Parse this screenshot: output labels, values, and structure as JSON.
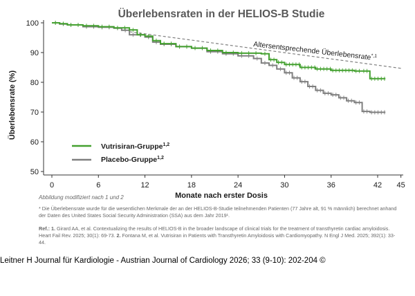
{
  "chart_data": {
    "type": "line",
    "title": "Überlebensraten in der HELIOS-B Studie",
    "xlabel": "Monate nach erster Dosis",
    "ylabel": "Überlebensrate (%)",
    "xlim": [
      0,
      45
    ],
    "ylim": [
      50,
      100
    ],
    "xticks": [
      0,
      6,
      12,
      18,
      24,
      30,
      36,
      42,
      45
    ],
    "yticks": [
      50,
      60,
      70,
      80,
      90,
      100
    ],
    "grid": false,
    "legend_position": "bottom-left",
    "series": [
      {
        "name": "Vutrisiran-Gruppe",
        "name_sup": "1,2",
        "color": "#43a02f",
        "style": "step-with-censor-ticks",
        "x": [
          0,
          1,
          2,
          4,
          6,
          8,
          10,
          11,
          12,
          13,
          14,
          16,
          18,
          20,
          22,
          24,
          27,
          28,
          29,
          30,
          32,
          34,
          36,
          39,
          40,
          41,
          43
        ],
        "y": [
          100,
          99.7,
          99.3,
          99,
          98.7,
          98.3,
          97.6,
          96,
          95.5,
          94,
          93,
          92,
          91.5,
          90.7,
          90,
          89.8,
          89.6,
          87.6,
          86.7,
          86,
          85,
          84.5,
          84,
          83.8,
          83.8,
          81.2,
          81.2
        ]
      },
      {
        "name": "Placebo-Gruppe",
        "name_sup": "1,2",
        "color": "#7f7f7f",
        "style": "step-with-censor-ticks",
        "x": [
          0,
          1,
          2,
          4,
          6,
          8,
          9,
          10,
          12,
          13,
          14,
          16,
          18,
          20,
          22,
          24,
          26,
          27,
          28,
          29,
          30,
          31,
          32,
          33,
          34,
          35,
          36,
          37,
          38,
          39,
          40,
          41,
          43
        ],
        "y": [
          100,
          99.6,
          99.3,
          98.7,
          98.5,
          98.2,
          97.5,
          96,
          95.2,
          93.5,
          92.8,
          92,
          91.5,
          90.3,
          89.6,
          88.9,
          88,
          86.5,
          85.7,
          84.5,
          83.2,
          81.5,
          80.2,
          78.6,
          77.3,
          76.3,
          75.8,
          74.8,
          73.8,
          73.2,
          70.2,
          69.9,
          69.9
        ]
      },
      {
        "name": "Altersentsprechende Überlebensrate",
        "name_sup": "*,1",
        "color": "#7f7f7f",
        "style": "dashed",
        "x": [
          10,
          45
        ],
        "y": [
          97,
          84.7
        ]
      }
    ]
  },
  "notes": {
    "source": "Abbildung modifiziert nach 1 und 2",
    "footnote": "* Die Überlebensrate wurde für die wesentlichen Merkmale der an der HELIOS-B-Studie teilnehmenden Patienten (77 Jahre alt, 91 % männlich) berechnet anhand der Daten des United States Social Security Administration (SSA) aus dem Jahr 2019¹.",
    "refs_label": "Ref.:",
    "ref1_num": "1.",
    "ref1_text": "Girard AA, et al. Contextualizing the results of HELIOS-B in the broader landscape of clinical trials for the treatment of transthyretin cardiac amyloidosis. Heart Fail Rev. 2025; 30(1): 69-73.",
    "ref2_num": "2.",
    "ref2_text": "Fontana M, et al. Vutrisiran in Patients with Transthyretin Amyloidosis with Cardiomyopathy. N Engl J Med. 2025; 392(1): 33-44."
  },
  "citation": "Leitner H Journal für Kardiologie - Austrian Journal of Cardiology 2026; 33 (9-10): 202-204 ©"
}
